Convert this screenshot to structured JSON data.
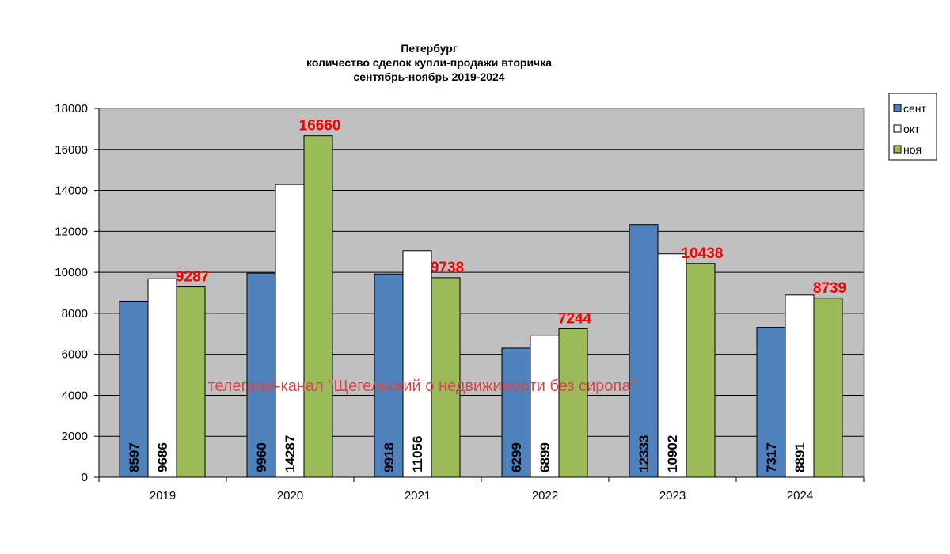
{
  "chart_data": {
    "type": "bar",
    "title": [
      "Петербург",
      "количество сделок купли-продажи вторичка",
      "сентябрь-ноябрь 2019-2024"
    ],
    "categories": [
      "2019",
      "2020",
      "2021",
      "2022",
      "2023",
      "2024"
    ],
    "series": [
      {
        "name": "сент",
        "color": "#4f81bd",
        "values": [
          8597,
          9960,
          9918,
          6299,
          12333,
          7317
        ]
      },
      {
        "name": "окт",
        "color": "#ffffff",
        "values": [
          9686,
          14287,
          11056,
          6899,
          10902,
          8891
        ]
      },
      {
        "name": "ноя",
        "color": "#9bbb59",
        "values": [
          9287,
          16660,
          9738,
          7244,
          10438,
          8739
        ]
      }
    ],
    "ylim": [
      0,
      18000
    ],
    "yticks": [
      0,
      2000,
      4000,
      6000,
      8000,
      10000,
      12000,
      14000,
      16000,
      18000
    ],
    "grid": true,
    "plot_background": "#c0c0c0",
    "legend_position": "right-top",
    "xlabel": "",
    "ylabel": ""
  },
  "watermark": "телеграм-канал \"Щегельский о недвижимости без сиропа\""
}
